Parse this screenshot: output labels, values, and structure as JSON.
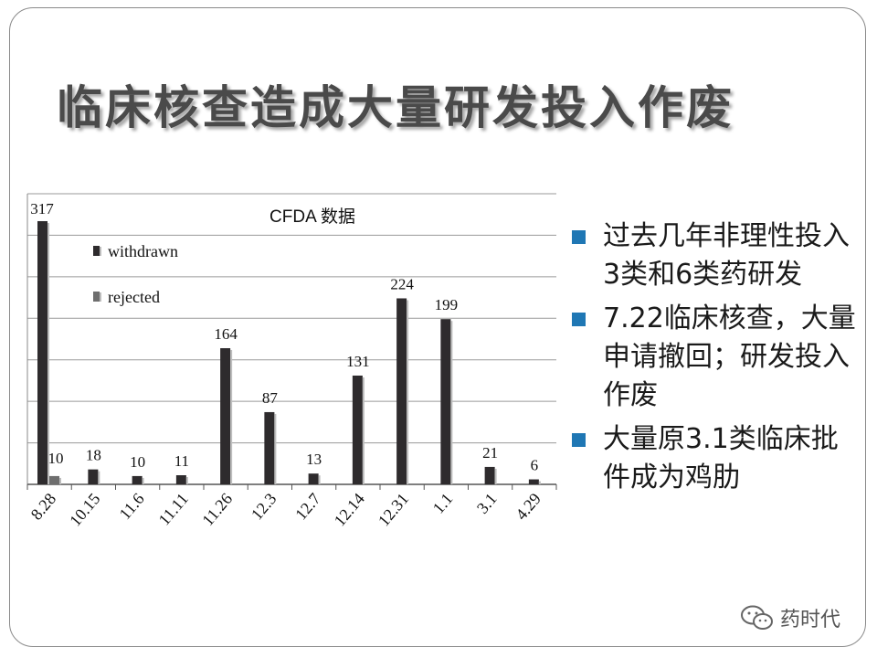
{
  "slide": {
    "title": "临床核查造成大量研发投入作废",
    "bullets": [
      "过去几年非理性投入3类和6类药研发",
      "7.22临床核查，大量申请撤回；研发投入作废",
      "大量原3.1类临床批件成为鸡肋"
    ],
    "watermark": "药时代",
    "bullet_color": "#1f77b4"
  },
  "chart_data": {
    "type": "bar",
    "title": "CFDA 数据",
    "categories": [
      "8.28",
      "10.15",
      "11.6",
      "11.11",
      "11.26",
      "12.3",
      "12.7",
      "12.14",
      "12.31",
      "1.1",
      "3.1",
      "4.29"
    ],
    "series": [
      {
        "name": "withdrawn",
        "color": "#2e2b2d",
        "values": [
          317,
          18,
          10,
          11,
          164,
          87,
          13,
          131,
          224,
          199,
          21,
          6
        ]
      },
      {
        "name": "rejected",
        "color": "#6e6e6e",
        "values": [
          10,
          0,
          0,
          0,
          0,
          0,
          0,
          0,
          0,
          0,
          0,
          0
        ]
      }
    ],
    "labels": [
      "317",
      "10",
      "18",
      "10",
      "11",
      "164",
      "87",
      "13",
      "131",
      "224",
      "199",
      "21",
      "6"
    ],
    "ylim": [
      0,
      350
    ],
    "grid": true,
    "legend": "top-left"
  }
}
